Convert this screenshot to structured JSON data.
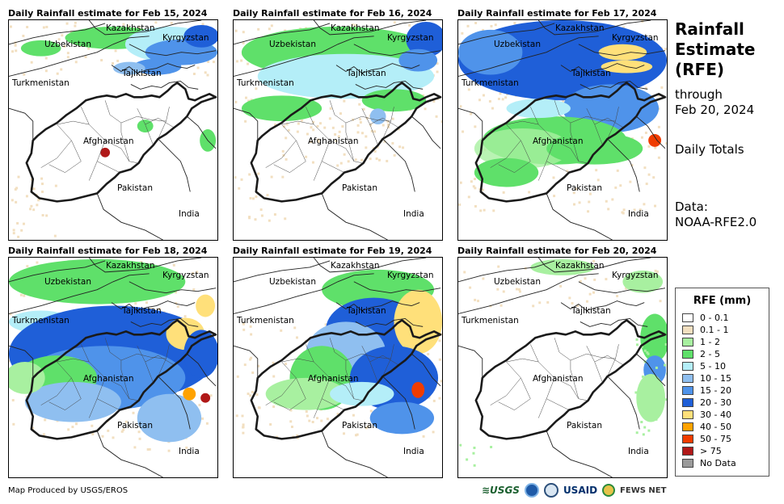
{
  "panels": [
    {
      "title": "Daily Rainfall estimate for Feb 15, 2024",
      "pattern": "feb15"
    },
    {
      "title": "Daily Rainfall estimate for Feb 16, 2024",
      "pattern": "feb16"
    },
    {
      "title": "Daily Rainfall estimate for Feb 17, 2024",
      "pattern": "feb17"
    },
    {
      "title": "Daily Rainfall estimate for Feb 18, 2024",
      "pattern": "feb18"
    },
    {
      "title": "Daily Rainfall estimate for Feb 19, 2024",
      "pattern": "feb19"
    },
    {
      "title": "Daily Rainfall estimate for Feb 20, 2024",
      "pattern": "feb20"
    }
  ],
  "labels": {
    "kazakhstan": "Kazakhstan",
    "kyrgyzstan": "Kyrgyzstan",
    "uzbekistan": "Uzbekistan",
    "tajikistan": "Tajikistan",
    "turkmenistan": "Turkmenistan",
    "afghanistan": "Afghanistan",
    "pakistan": "Pakistan",
    "india": "India"
  },
  "side": {
    "title_line1": "Rainfall",
    "title_line2": "Estimate",
    "title_line3": "(RFE)",
    "through": "through",
    "date": "Feb 20, 2024",
    "daily": "Daily Totals",
    "data_label": "Data:",
    "data_source": "NOAA-RFE2.0"
  },
  "legend": {
    "title": "RFE (mm)",
    "items": [
      {
        "label": "0 - 0.1",
        "color": "#ffffff"
      },
      {
        "label": "0.1 - 1",
        "color": "#f2dfc0"
      },
      {
        "label": "1 - 2",
        "color": "#a8f0a0"
      },
      {
        "label": "2 - 5",
        "color": "#5fe06a"
      },
      {
        "label": "5 - 10",
        "color": "#b4eef8"
      },
      {
        "label": "10 - 15",
        "color": "#8fbff0"
      },
      {
        "label": "15 - 20",
        "color": "#4f93ea"
      },
      {
        "label": "20 - 30",
        "color": "#1f5fd8"
      },
      {
        "label": "30 - 40",
        "color": "#ffe07a"
      },
      {
        "label": "40 - 50",
        "color": "#ffa200"
      },
      {
        "label": "50 - 75",
        "color": "#f03c00"
      },
      {
        "label": "> 75",
        "color": "#b01818"
      },
      {
        "label": "No Data",
        "color": "#9a9a9a"
      }
    ]
  },
  "footer": "Map Produced by USGS/EROS",
  "logos": {
    "usgs": "≋USGS",
    "usaid": "USAID",
    "fews": "FEWS NET"
  }
}
